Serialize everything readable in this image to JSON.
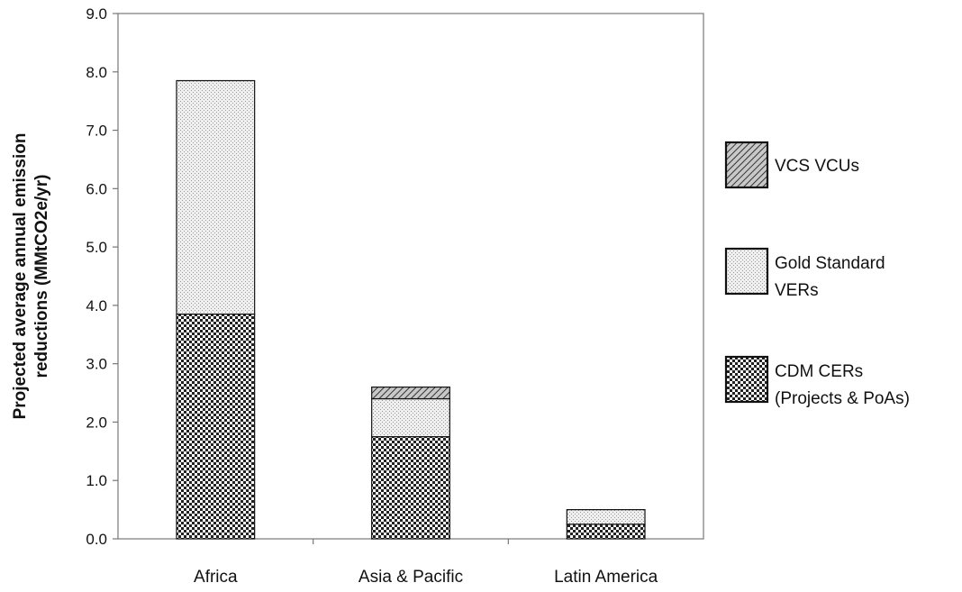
{
  "chart_data": {
    "type": "bar",
    "stacked": true,
    "categories": [
      "Africa",
      "Asia & Pacific",
      "Latin America"
    ],
    "series": [
      {
        "name": "CDM CERs (Projects & PoAs)",
        "legend_lines": [
          "CDM CERs",
          "(Projects & PoAs)"
        ],
        "values": [
          3.85,
          1.75,
          0.25
        ],
        "pattern": "checker"
      },
      {
        "name": "Gold Standard VERs",
        "legend_lines": [
          "Gold Standard",
          "VERs"
        ],
        "values": [
          4.0,
          0.65,
          0.25
        ],
        "pattern": "dots"
      },
      {
        "name": "VCS VCUs",
        "legend_lines": [
          "VCS VCUs"
        ],
        "values": [
          0.0,
          0.2,
          0.0
        ],
        "pattern": "hatch"
      }
    ],
    "ylabel_lines": [
      "Projected average annual emission",
      "reductions (MMtCO2e/yr)"
    ],
    "ylim": [
      0,
      9
    ],
    "yticks": [
      "0.0",
      "1.0",
      "2.0",
      "3.0",
      "4.0",
      "5.0",
      "6.0",
      "7.0",
      "8.0",
      "9.0"
    ],
    "legend_placement": "right",
    "grid": false
  }
}
